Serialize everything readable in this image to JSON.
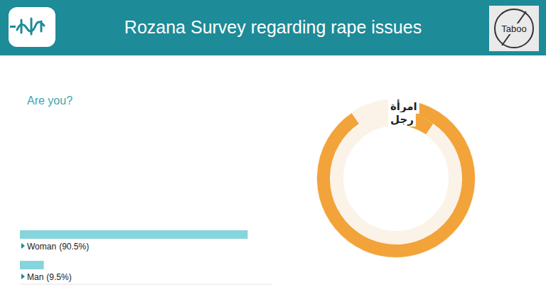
{
  "header": {
    "title": "Rozana Survey regarding rape issues",
    "badge": "Taboo"
  },
  "chart_data": [
    {
      "type": "bar",
      "title": "Are you?",
      "orientation": "horizontal",
      "categories": [
        "Woman",
        "Man"
      ],
      "values": [
        90.5,
        9.5
      ],
      "value_labels": [
        "(90.5%)",
        "(9.5%)"
      ],
      "color": "#86d4dc",
      "xlim": [
        0,
        100
      ],
      "tick_labels": false,
      "grid": false
    },
    {
      "type": "donut",
      "categories": [
        "امرأة",
        "رجل"
      ],
      "values": [
        90.5,
        9.5
      ],
      "colors": [
        "#f2a33a",
        "#f2a33a"
      ]
    }
  ]
}
